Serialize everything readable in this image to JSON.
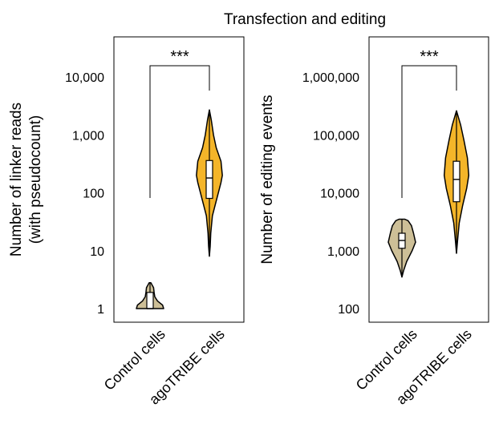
{
  "figure_title": "Transfection and editing",
  "colors": {
    "control_fill": "#cdbf97",
    "agotribe_fill": "#f4b529",
    "outline": "#000000",
    "box_fill": "#ffffff"
  },
  "chart_data": [
    {
      "type": "violin",
      "title": "",
      "xlabel": "",
      "ylabel": "Number of linker reads\n(with pseudocount)",
      "yscale": "log",
      "ylim": [
        0.6,
        40000
      ],
      "yticks": [
        1,
        10,
        100,
        1000,
        10000
      ],
      "ytick_labels": [
        "1",
        "10",
        "100",
        "1,000",
        "10,000"
      ],
      "categories": [
        "Control cells",
        "agoTRIBE cells"
      ],
      "significance": {
        "label": "***",
        "between": [
          "Control cells",
          "agoTRIBE cells"
        ]
      },
      "series": [
        {
          "category": "Control cells",
          "color": "#cdbf97",
          "min": 1,
          "q1": 1,
          "median": 1,
          "q3": 1.9,
          "max": 2.8,
          "profile": [
            [
              1.0,
              1.0
            ],
            [
              1.15,
              0.92
            ],
            [
              1.35,
              0.55
            ],
            [
              1.6,
              0.35
            ],
            [
              1.9,
              0.3
            ],
            [
              2.3,
              0.26
            ],
            [
              2.8,
              0.06
            ]
          ]
        },
        {
          "category": "agoTRIBE cells",
          "color": "#f4b529",
          "min": 8,
          "q1": 80,
          "median": 180,
          "q3": 360,
          "max": 2700,
          "profile": [
            [
              8,
              0.0
            ],
            [
              12,
              0.06
            ],
            [
              20,
              0.1
            ],
            [
              40,
              0.22
            ],
            [
              80,
              0.55
            ],
            [
              150,
              0.85
            ],
            [
              200,
              0.95
            ],
            [
              350,
              0.85
            ],
            [
              600,
              0.5
            ],
            [
              1000,
              0.3
            ],
            [
              1800,
              0.14
            ],
            [
              2700,
              0.0
            ]
          ]
        }
      ]
    },
    {
      "type": "violin",
      "title": "",
      "xlabel": "",
      "ylabel": "Number of editing events",
      "yscale": "log",
      "ylim": [
        70,
        4000000
      ],
      "yticks": [
        100,
        1000,
        10000,
        100000,
        1000000
      ],
      "ytick_labels": [
        "100",
        "1,000",
        "10,000",
        "100,000",
        "1,000,000"
      ],
      "categories": [
        "Control cells",
        "agoTRIBE cells"
      ],
      "significance": {
        "label": "***",
        "between": [
          "Control cells",
          "agoTRIBE cells"
        ]
      },
      "series": [
        {
          "category": "Control cells",
          "color": "#cdbf97",
          "min": 350,
          "q1": 1100,
          "median": 1500,
          "q3": 2000,
          "max": 3500,
          "profile": [
            [
              350,
              0.0
            ],
            [
              450,
              0.12
            ],
            [
              650,
              0.35
            ],
            [
              1000,
              0.75
            ],
            [
              1400,
              1.0
            ],
            [
              2000,
              0.85
            ],
            [
              2700,
              0.7
            ],
            [
              3300,
              0.45
            ],
            [
              3500,
              0.2
            ]
          ]
        },
        {
          "category": "agoTRIBE cells",
          "color": "#f4b529",
          "min": 900,
          "q1": 7000,
          "median": 17000,
          "q3": 35000,
          "max": 260000,
          "profile": [
            [
              900,
              0.0
            ],
            [
              1500,
              0.08
            ],
            [
              3000,
              0.2
            ],
            [
              6000,
              0.45
            ],
            [
              12000,
              0.75
            ],
            [
              20000,
              0.9
            ],
            [
              40000,
              0.8
            ],
            [
              80000,
              0.55
            ],
            [
              150000,
              0.3
            ],
            [
              260000,
              0.0
            ]
          ]
        }
      ]
    }
  ]
}
